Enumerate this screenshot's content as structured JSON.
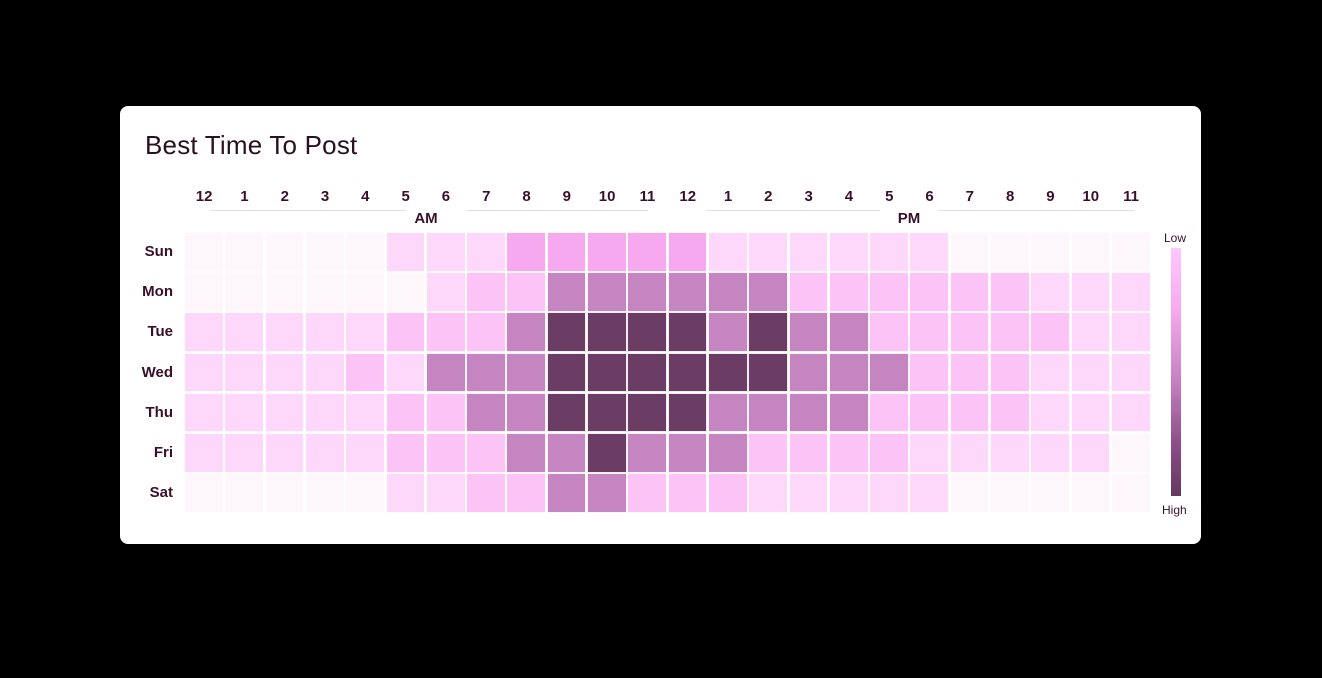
{
  "title": "Best Time To Post",
  "hour_labels": [
    "12",
    "1",
    "2",
    "3",
    "4",
    "5",
    "6",
    "7",
    "8",
    "9",
    "10",
    "11",
    "12",
    "1",
    "2",
    "3",
    "4",
    "5",
    "6",
    "7",
    "8",
    "9",
    "10",
    "11"
  ],
  "period_labels": {
    "am": "AM",
    "pm": "PM"
  },
  "days": [
    "Sun",
    "Mon",
    "Tue",
    "Wed",
    "Thu",
    "Fri",
    "Sat"
  ],
  "legend": {
    "low": "Low",
    "high": "High"
  },
  "colors": {
    "scale": [
      "#fdf6fb",
      "#fdeffb",
      "#fdd8fb",
      "#fbc3f6",
      "#f7a9f0",
      "#c585c1",
      "#a0629b",
      "#7b4875",
      "#6b3d65"
    ]
  },
  "chart_data": {
    "type": "heatmap",
    "title": "Best Time To Post",
    "x_categories": [
      "12",
      "1",
      "2",
      "3",
      "4",
      "5",
      "6",
      "7",
      "8",
      "9",
      "10",
      "11",
      "12",
      "1",
      "2",
      "3",
      "4",
      "5",
      "6",
      "7",
      "8",
      "9",
      "10",
      "11"
    ],
    "y_categories": [
      "Sun",
      "Mon",
      "Tue",
      "Wed",
      "Thu",
      "Fri",
      "Sat"
    ],
    "scale": {
      "min": 0,
      "max": 8,
      "low_label": "Low",
      "high_label": "High"
    },
    "values": [
      [
        0,
        0,
        0,
        0,
        0,
        2,
        2,
        2,
        4,
        4,
        4,
        4,
        4,
        2,
        2,
        2,
        2,
        2,
        2,
        0,
        0,
        0,
        0,
        0
      ],
      [
        0,
        0,
        0,
        0,
        0,
        0,
        2,
        3,
        3,
        5,
        5,
        5,
        5,
        5,
        5,
        3,
        3,
        3,
        3,
        3,
        3,
        2,
        2,
        2
      ],
      [
        2,
        2,
        2,
        2,
        2,
        3,
        3,
        3,
        5,
        8,
        8,
        8,
        8,
        5,
        8,
        5,
        5,
        3,
        3,
        3,
        3,
        3,
        2,
        2
      ],
      [
        2,
        2,
        2,
        2,
        3,
        2,
        5,
        5,
        5,
        8,
        8,
        8,
        8,
        8,
        8,
        5,
        5,
        5,
        3,
        3,
        3,
        2,
        2,
        2
      ],
      [
        2,
        2,
        2,
        2,
        2,
        3,
        3,
        5,
        5,
        8,
        8,
        8,
        8,
        5,
        5,
        5,
        5,
        3,
        3,
        3,
        3,
        2,
        2,
        2
      ],
      [
        2,
        2,
        2,
        2,
        2,
        3,
        3,
        3,
        5,
        5,
        8,
        5,
        5,
        5,
        3,
        3,
        3,
        3,
        2,
        2,
        2,
        2,
        2,
        0
      ],
      [
        0,
        0,
        0,
        0,
        0,
        2,
        2,
        3,
        3,
        5,
        5,
        3,
        3,
        3,
        2,
        2,
        2,
        2,
        2,
        0,
        0,
        0,
        0,
        0
      ]
    ]
  }
}
